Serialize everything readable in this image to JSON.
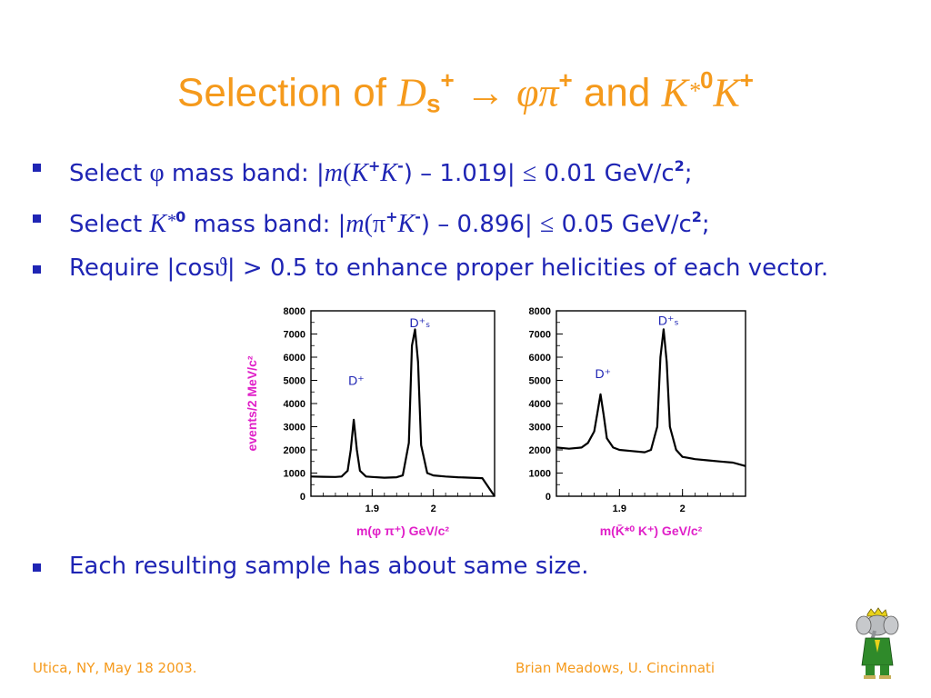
{
  "title": {
    "prefix": "Selection of ",
    "ds_main": "D",
    "ds_sub": "s",
    "ds_sup": "+",
    "arrow": " → ",
    "phi": "φ",
    "pi": "π",
    "pi_sup": "+",
    "and": " and ",
    "k1": "K",
    "k1_star": "*",
    "k1_sup": "0",
    "k2": "K",
    "k2_sup": "+"
  },
  "bullets": [
    {
      "p1": "Select ",
      "sym": "φ",
      "p2": " mass band:  |",
      "m": "m",
      "p3": "(",
      "k": "K",
      "k_sup": "+",
      "k2": "K",
      "k2_sup": "-",
      "p4": ") – 1.019| ",
      "le": "≤",
      "p5": " 0.01 GeV/c",
      "c_sup": "2",
      "p6": ";"
    },
    {
      "p1": "Select ",
      "k": "K",
      "k_star": "*",
      "k_sup": "0",
      "p2": " mass band:  |",
      "m": "m",
      "p3": "(",
      "pi": "π",
      "pi_sup": "+",
      "k2": "K",
      "k2_sup": "-",
      "p4": ") – 0.896| ",
      "le": "≤",
      "p5": " 0.05 GeV/c",
      "c_sup": "2",
      "p6": ";"
    },
    {
      "p1": "Require |cos",
      "theta": "ϑ",
      "p2": "| > 0.5 to enhance proper helicities of each vector."
    }
  ],
  "last_bullet": "Each resulting sample has about same size.",
  "footer": {
    "left": "Utica, NY, May 18 2003.",
    "right": "Brian Meadows, U. Cincinnati"
  },
  "colors": {
    "title": "#f59a1c",
    "text": "#1f25b4",
    "axis_label": "#e020c8",
    "peak_label": "#1f25b4",
    "footer": "#f59a1c"
  },
  "chart_data": [
    {
      "type": "line",
      "title": "",
      "xlabel": "m(φ π⁺) GeV/c²",
      "ylabel": "events/2 MeV/c²",
      "xlim": [
        1.8,
        2.1
      ],
      "ylim": [
        0,
        8000
      ],
      "xticks": [
        "1.9",
        "2"
      ],
      "yticks": [
        "0",
        "1000",
        "2000",
        "3000",
        "4000",
        "5000",
        "6000",
        "7000",
        "8000"
      ],
      "annotations": [
        {
          "text": "D⁺",
          "x": 1.87,
          "y": 4800
        },
        {
          "text": "D⁺ₛ",
          "x": 1.97,
          "y": 7300
        }
      ],
      "x": [
        1.8,
        1.82,
        1.84,
        1.85,
        1.86,
        1.865,
        1.87,
        1.875,
        1.88,
        1.89,
        1.9,
        1.92,
        1.94,
        1.95,
        1.96,
        1.965,
        1.97,
        1.975,
        1.98,
        1.99,
        2.0,
        2.02,
        2.04,
        2.06,
        2.08,
        2.1
      ],
      "y": [
        850,
        840,
        830,
        850,
        1100,
        2000,
        3300,
        2000,
        1100,
        850,
        830,
        800,
        820,
        900,
        2300,
        6500,
        7200,
        5800,
        2200,
        1000,
        900,
        850,
        820,
        800,
        780,
        0
      ]
    },
    {
      "type": "line",
      "title": "",
      "xlabel": "m(K̄*⁰ K⁺) GeV/c²",
      "ylabel": "",
      "xlim": [
        1.8,
        2.1
      ],
      "ylim": [
        0,
        8000
      ],
      "xticks": [
        "1.9",
        "2"
      ],
      "yticks": [
        "0",
        "1000",
        "2000",
        "3000",
        "4000",
        "5000",
        "6000",
        "7000",
        "8000"
      ],
      "annotations": [
        {
          "text": "D⁺",
          "x": 1.87,
          "y": 5100
        },
        {
          "text": "D⁺ₛ",
          "x": 1.97,
          "y": 7400
        }
      ],
      "x": [
        1.8,
        1.82,
        1.84,
        1.85,
        1.86,
        1.865,
        1.87,
        1.875,
        1.88,
        1.89,
        1.9,
        1.92,
        1.94,
        1.95,
        1.96,
        1.965,
        1.97,
        1.975,
        1.98,
        1.99,
        2.0,
        2.02,
        2.04,
        2.06,
        2.08,
        2.1
      ],
      "y": [
        2100,
        2050,
        2100,
        2300,
        2800,
        3600,
        4400,
        3500,
        2500,
        2100,
        2000,
        1950,
        1900,
        2000,
        3000,
        6000,
        7200,
        5800,
        3000,
        2000,
        1700,
        1600,
        1550,
        1500,
        1450,
        1300
      ]
    }
  ]
}
